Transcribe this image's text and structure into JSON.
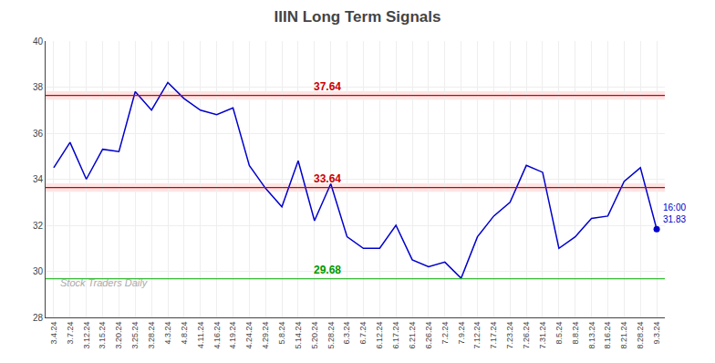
{
  "chart_data": {
    "type": "line",
    "title": "IIIN Long Term Signals",
    "categories": [
      "3.4.24",
      "3.7.24",
      "3.12.24",
      "3.15.24",
      "3.20.24",
      "3.25.24",
      "3.28.24",
      "4.3.24",
      "4.8.24",
      "4.11.24",
      "4.16.24",
      "4.19.24",
      "4.24.24",
      "4.29.24",
      "5.8.24",
      "5.14.24",
      "5.20.24",
      "5.28.24",
      "6.3.24",
      "6.7.24",
      "6.12.24",
      "6.17.24",
      "6.21.24",
      "6.26.24",
      "7.2.24",
      "7.9.24",
      "7.12.24",
      "7.17.24",
      "7.23.24",
      "7.26.24",
      "7.31.24",
      "8.5.24",
      "8.8.24",
      "8.13.24",
      "8.16.24",
      "8.21.24",
      "8.28.24",
      "9.3.24"
    ],
    "values": [
      34.5,
      35.6,
      34.0,
      35.3,
      35.2,
      37.8,
      37.0,
      38.2,
      37.5,
      37.0,
      36.8,
      37.1,
      34.6,
      33.6,
      32.8,
      34.8,
      32.2,
      33.8,
      31.5,
      31.0,
      31.0,
      32.0,
      30.5,
      30.2,
      30.4,
      29.7,
      31.5,
      32.4,
      33.0,
      34.6,
      34.3,
      31.0,
      31.5,
      32.3,
      32.4,
      33.9,
      34.5,
      31.83
    ],
    "color": "#0000cc",
    "ylim": [
      28,
      40
    ],
    "yticks": [
      28,
      30,
      32,
      34,
      36,
      38,
      40
    ],
    "grid": true,
    "reference_lines": [
      {
        "value": 37.64,
        "label": "37.64",
        "color": "#cc0000",
        "label_color": "#cc0000",
        "band_half_width": 0.18,
        "band_color": "#ff9999"
      },
      {
        "value": 33.64,
        "label": "33.64",
        "color": "#cc0000",
        "label_color": "#cc0000",
        "band_half_width": 0.18,
        "band_color": "#ff9999"
      },
      {
        "value": 29.68,
        "label": "29.68",
        "color": "#33bb33",
        "label_color": "#009900"
      }
    ],
    "annotations": [
      {
        "category": "9.3.24",
        "value": 31.83,
        "text": [
          "16:00",
          "31.83"
        ],
        "color": "#0000cc",
        "marker": "circle"
      }
    ],
    "watermark": {
      "text": "Stock Traders Daily",
      "color": "#aaaaaa"
    }
  }
}
